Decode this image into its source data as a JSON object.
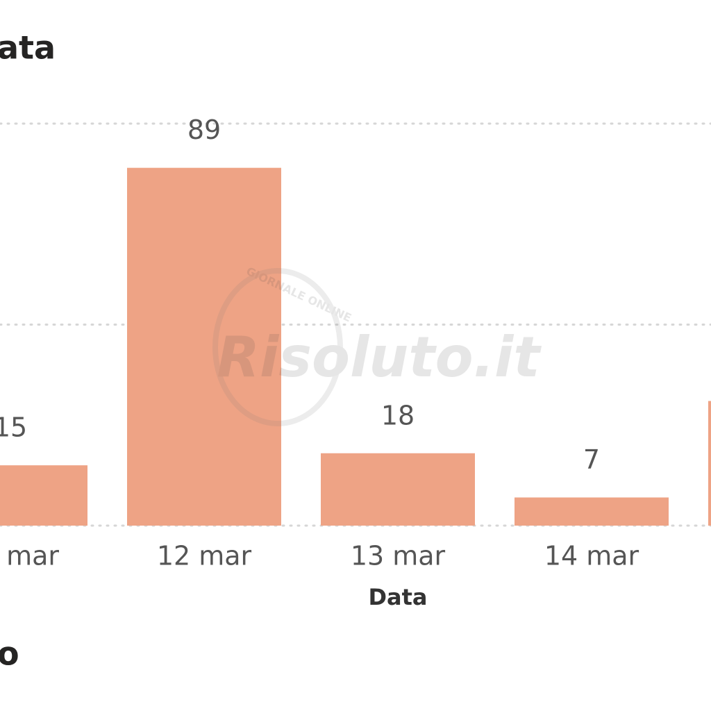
{
  "title": "ata",
  "footer_text": "o",
  "watermark": {
    "brand": "Risoluto.it",
    "tagline": "GIORNALE ONLINE"
  },
  "chart_data": {
    "type": "bar",
    "x_label": "Data",
    "categories": [
      "mar",
      "12 mar",
      "13 mar",
      "14 mar",
      null
    ],
    "values": [
      15,
      89,
      18,
      7,
      31
    ],
    "color": "#eea385",
    "ylim": [
      0,
      100
    ],
    "yticks": [
      0,
      50,
      100
    ],
    "grid": true
  }
}
